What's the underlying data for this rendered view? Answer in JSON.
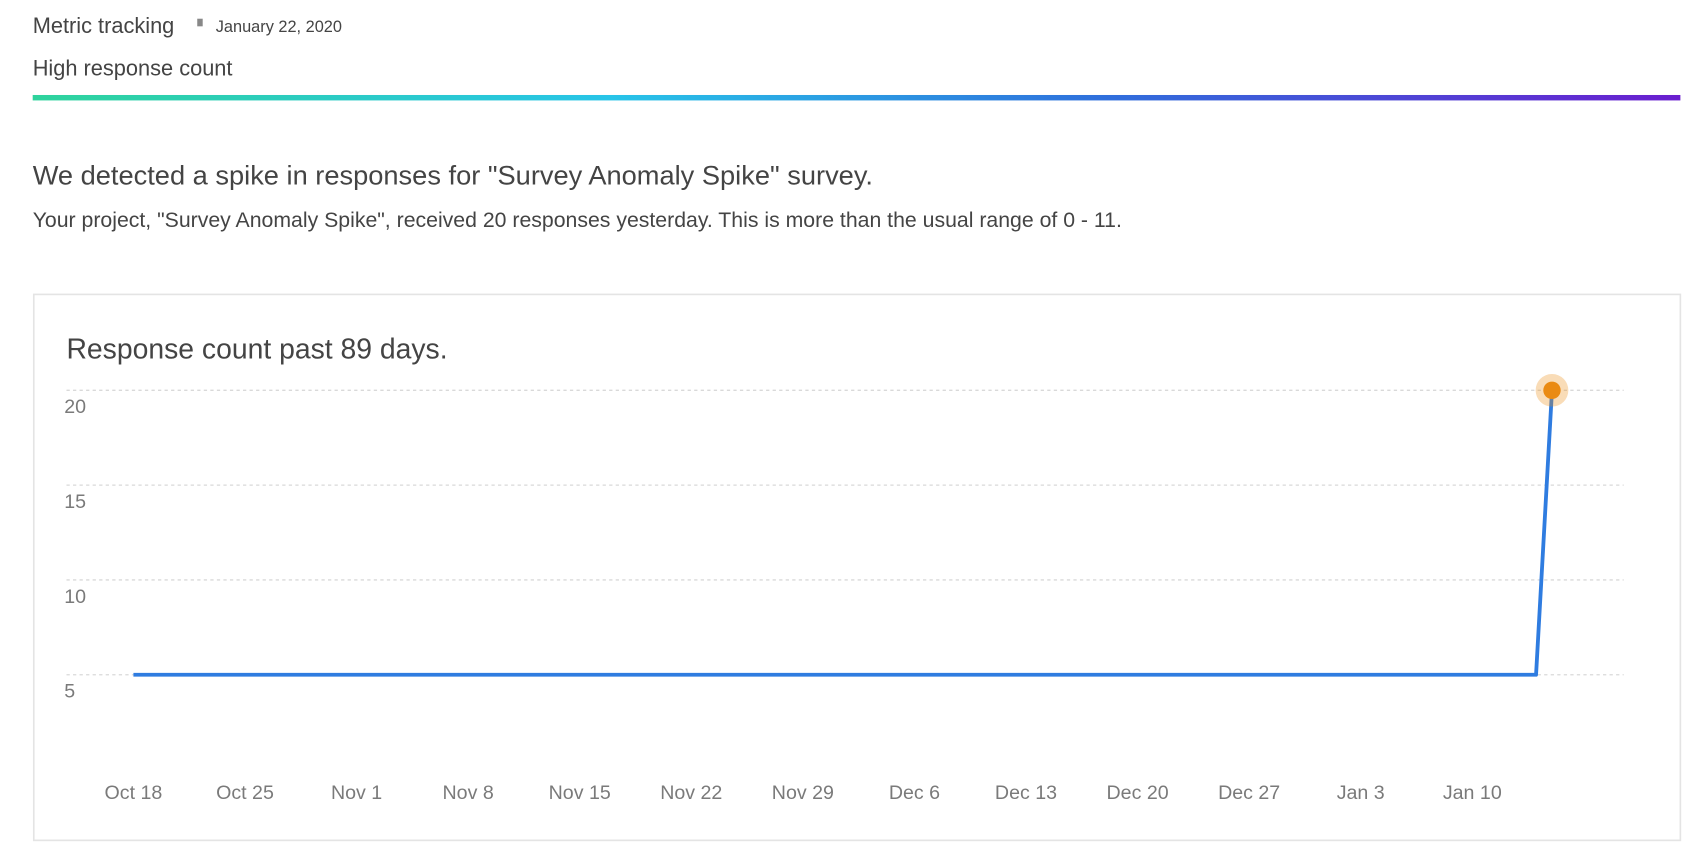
{
  "header": {
    "category": "Metric tracking",
    "date": "January 22, 2020",
    "title": "High response count"
  },
  "message": {
    "heading": "We detected a spike in responses for \"Survey Anomaly Spike\" survey.",
    "body": "Your project, \"Survey Anomaly Spike\", received 20 responses yesterday. This is more than the usual range of 0 - 11."
  },
  "chart_data": {
    "type": "line",
    "title": "Response count past 89 days.",
    "series": [
      {
        "x": [
          0,
          88,
          89
        ],
        "values": [
          5,
          5,
          20
        ],
        "color": "#2f7ce0",
        "marker_color": "#ea8a12"
      }
    ],
    "xlim": [
      -4.2,
      93.5
    ],
    "xticks": [
      {
        "value": 0,
        "label": "Oct 18"
      },
      {
        "value": 7,
        "label": "Oct 25"
      },
      {
        "value": 14,
        "label": "Nov 1"
      },
      {
        "value": 21,
        "label": "Nov 8"
      },
      {
        "value": 28,
        "label": "Nov 15"
      },
      {
        "value": 35,
        "label": "Nov 22"
      },
      {
        "value": 42,
        "label": "Nov 29"
      },
      {
        "value": 49,
        "label": "Dec 6"
      },
      {
        "value": 56,
        "label": "Dec 13"
      },
      {
        "value": 63,
        "label": "Dec 20"
      },
      {
        "value": 70,
        "label": "Dec 27"
      },
      {
        "value": 77,
        "label": "Jan 3"
      },
      {
        "value": 84,
        "label": "Jan 10"
      }
    ],
    "ylim": [
      0,
      20
    ],
    "yticks": [
      5,
      10,
      15,
      20
    ],
    "grid": true
  }
}
